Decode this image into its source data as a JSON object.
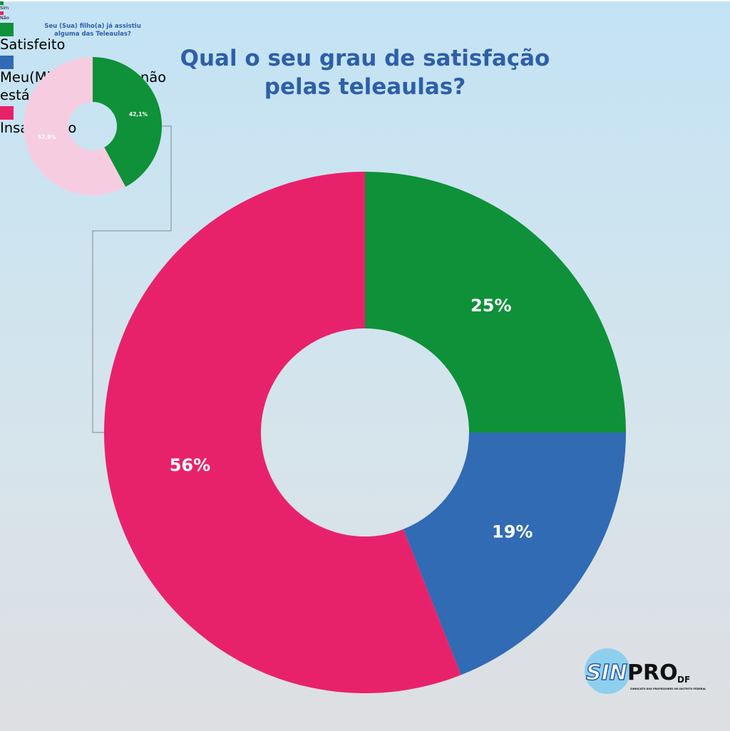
{
  "chart_data": [
    {
      "type": "donut",
      "title": "Seu (Sua) filho(a) já assistiu alguma das Teleaulas?",
      "categories": [
        "Sim",
        "Não"
      ],
      "values": [
        42.1,
        57.9
      ],
      "value_labels": [
        "42,1%",
        "57,9%"
      ],
      "colors": [
        "#0e9138",
        "#f6cde0"
      ],
      "legend_colors": [
        "#0e9138",
        "#e8226a"
      ],
      "legend": "top"
    },
    {
      "type": "donut",
      "title": "Qual o seu grau de satisfação pelas teleaulas?",
      "categories": [
        "Satisfeito",
        "Meu(Minha) filho(a) não está acompanhando",
        "Insatisfeito"
      ],
      "values": [
        25,
        19,
        56
      ],
      "value_labels": [
        "25%",
        "19%",
        "56%"
      ],
      "colors": [
        "#0e9138",
        "#306bb3",
        "#e8226a"
      ],
      "legend_colors": [
        "#0e9138",
        "#306bb3",
        "#e8226a"
      ],
      "legend": "top"
    }
  ],
  "logo": {
    "left": "SIN",
    "right": "PRO",
    "region": "DF",
    "subtitle": "SINDICATO DOS PROFESSORES NO DISTRITO FEDERAL"
  }
}
